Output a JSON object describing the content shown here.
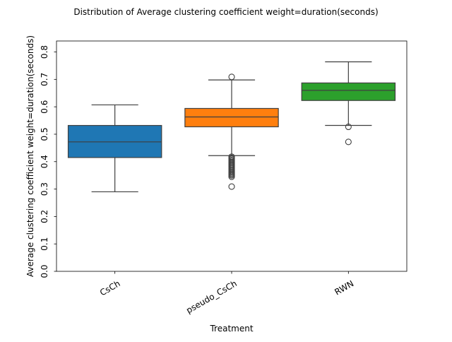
{
  "chart_data": {
    "type": "box",
    "title": "Distribution of Average clustering coefficient weight=duration(seconds)",
    "xlabel": "Treatment",
    "ylabel": "Average clustering coefficient weight=duration(seconds)",
    "ylim": [
      0.0,
      0.84
    ],
    "yticks": [
      0.0,
      0.1,
      0.2,
      0.3,
      0.4,
      0.5,
      0.6,
      0.7,
      0.8
    ],
    "ytick_labels": [
      "0.0",
      "0.1",
      "0.2",
      "0.3",
      "0.4",
      "0.5",
      "0.6",
      "0.7",
      "0.8"
    ],
    "grid": false,
    "categories": [
      "CsCh",
      "pseudo_CsCh",
      "RWN"
    ],
    "boxes": [
      {
        "category": "CsCh",
        "color": "#1f77b4",
        "whisker_low": 0.29,
        "q1": 0.415,
        "median": 0.472,
        "q3": 0.532,
        "whisker_high": 0.607,
        "outliers": []
      },
      {
        "category": "pseudo_CsCh",
        "color": "#ff7f0e",
        "whisker_low": 0.422,
        "q1": 0.527,
        "median": 0.563,
        "q3": 0.594,
        "whisker_high": 0.698,
        "outliers": [
          0.709,
          0.418,
          0.414,
          0.41,
          0.406,
          0.402,
          0.398,
          0.394,
          0.39,
          0.386,
          0.382,
          0.378,
          0.374,
          0.37,
          0.366,
          0.362,
          0.358,
          0.354,
          0.35,
          0.345,
          0.309
        ]
      },
      {
        "category": "RWN",
        "color": "#2ca02c",
        "whisker_low": 0.532,
        "q1": 0.623,
        "median": 0.66,
        "q3": 0.687,
        "whisker_high": 0.764,
        "outliers": [
          0.527,
          0.472
        ]
      }
    ]
  }
}
